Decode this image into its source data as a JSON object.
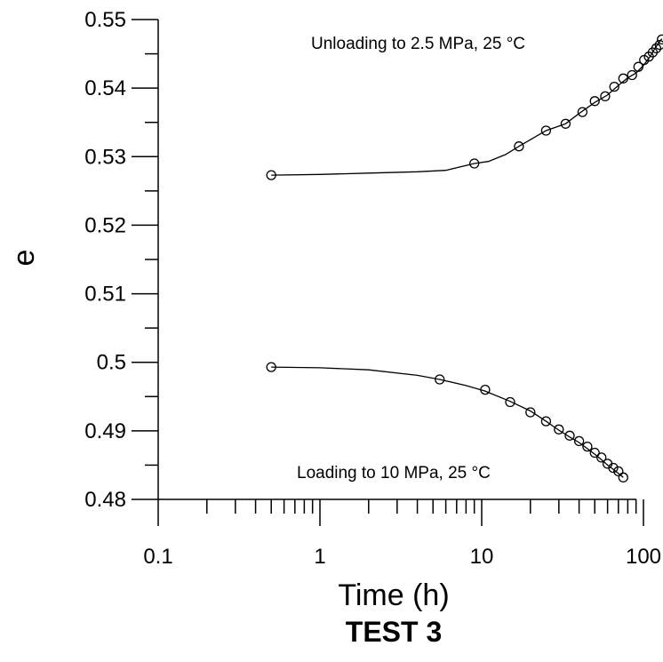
{
  "chart_data": {
    "type": "scatter",
    "title": "",
    "caption": "TEST 3",
    "xlabel": "Time (h)",
    "ylabel": "e",
    "x_scale": "log",
    "xlim": [
      0.1,
      130
    ],
    "ylim": [
      0.48,
      0.55
    ],
    "x_ticks": [
      0.1,
      1,
      10,
      100
    ],
    "x_tick_labels": [
      "0.1",
      "1",
      "10",
      "100"
    ],
    "y_ticks": [
      0.48,
      0.49,
      0.5,
      0.51,
      0.52,
      0.53,
      0.54,
      0.55
    ],
    "y_tick_labels": [
      "0.48",
      "0.49",
      "0.5",
      "0.51",
      "0.52",
      "0.53",
      "0.54",
      "0.55"
    ],
    "grid": false,
    "series": [
      {
        "name": "Unloading to 2.5 MPa, 25 °C",
        "color": "#000000",
        "line": [
          [
            0.5,
            0.5273
          ],
          [
            1,
            0.5274
          ],
          [
            2,
            0.5276
          ],
          [
            4,
            0.5278
          ],
          [
            6,
            0.528
          ],
          [
            9,
            0.529
          ],
          [
            11,
            0.5293
          ],
          [
            14,
            0.5303
          ],
          [
            17,
            0.5315
          ],
          [
            25,
            0.5338
          ],
          [
            33,
            0.5348
          ],
          [
            40,
            0.5363
          ],
          [
            50,
            0.5379
          ],
          [
            60,
            0.539
          ],
          [
            70,
            0.5404
          ],
          [
            80,
            0.5415
          ],
          [
            90,
            0.5422
          ],
          [
            100,
            0.5433
          ],
          [
            110,
            0.5446
          ],
          [
            120,
            0.5461
          ],
          [
            130,
            0.5472
          ]
        ],
        "markers": [
          [
            0.5,
            0.5273
          ],
          [
            9,
            0.529
          ],
          [
            17,
            0.5315
          ],
          [
            25,
            0.5338
          ],
          [
            33,
            0.5348
          ],
          [
            42,
            0.5365
          ],
          [
            50,
            0.5381
          ],
          [
            58,
            0.5388
          ],
          [
            66,
            0.5402
          ],
          [
            75,
            0.5414
          ],
          [
            85,
            0.5419
          ],
          [
            93,
            0.5431
          ],
          [
            101,
            0.5441
          ],
          [
            108,
            0.5446
          ],
          [
            114,
            0.5452
          ],
          [
            120,
            0.5458
          ],
          [
            126,
            0.5463
          ],
          [
            130,
            0.5471
          ]
        ]
      },
      {
        "name": "Loading to 10 MPa, 25 °C",
        "color": "#000000",
        "line": [
          [
            0.5,
            0.4993
          ],
          [
            1,
            0.4992
          ],
          [
            2,
            0.4989
          ],
          [
            4,
            0.4981
          ],
          [
            5.5,
            0.4975
          ],
          [
            8,
            0.4966
          ],
          [
            10.5,
            0.4958
          ],
          [
            15,
            0.4943
          ],
          [
            20,
            0.4929
          ],
          [
            25,
            0.4914
          ],
          [
            30,
            0.4901
          ],
          [
            35,
            0.4891
          ],
          [
            40,
            0.4883
          ],
          [
            45,
            0.4874
          ],
          [
            50,
            0.4866
          ],
          [
            55,
            0.4858
          ],
          [
            60,
            0.485
          ],
          [
            65,
            0.4844
          ],
          [
            70,
            0.4838
          ],
          [
            75,
            0.4832
          ]
        ],
        "markers": [
          [
            0.5,
            0.4993
          ],
          [
            5.5,
            0.4975
          ],
          [
            10.5,
            0.496
          ],
          [
            15,
            0.4942
          ],
          [
            20,
            0.4927
          ],
          [
            25,
            0.4914
          ],
          [
            30,
            0.4902
          ],
          [
            35,
            0.4893
          ],
          [
            40,
            0.4885
          ],
          [
            45,
            0.4877
          ],
          [
            50,
            0.4868
          ],
          [
            55,
            0.4861
          ],
          [
            60,
            0.4852
          ],
          [
            65,
            0.4846
          ],
          [
            70,
            0.4841
          ],
          [
            75,
            0.4832
          ]
        ]
      }
    ],
    "annotations": [
      {
        "text": "Unloading to 2.5 MPa, 25 °C",
        "series_index": 0
      },
      {
        "text": "Loading to 10 MPa, 25 °C",
        "series_index": 1
      }
    ]
  }
}
